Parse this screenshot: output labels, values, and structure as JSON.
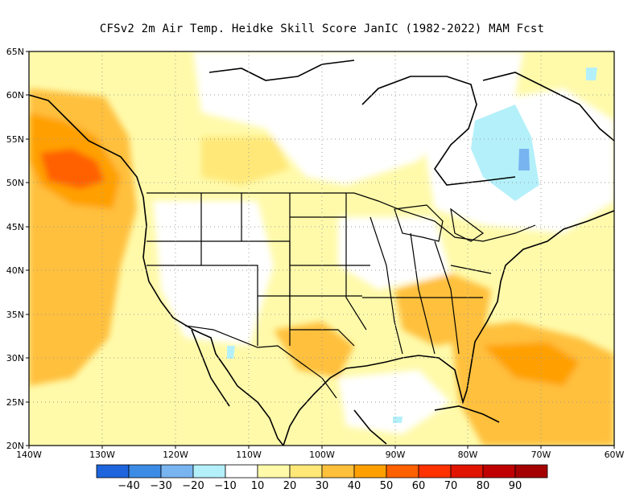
{
  "title": "CFSv2  2m Air Temp. Heidke Skill Score JanIC (1982-2022) MAM Fcst",
  "map": {
    "lon_labels": [
      "140W",
      "130W",
      "120W",
      "110W",
      "100W",
      "90W",
      "80W",
      "70W",
      "60W"
    ],
    "lat_labels": [
      "65N",
      "60N",
      "55N",
      "50N",
      "45N",
      "40N",
      "35N",
      "30N",
      "25N",
      "20N"
    ],
    "lon_range": [
      -140,
      -60
    ],
    "lat_range": [
      20,
      65
    ],
    "grid": true
  },
  "colorbar": {
    "colors": [
      "#1e64dc",
      "#3c8ce6",
      "#78b4f0",
      "#b4f0fa",
      "#ffffff",
      "#fffaaa",
      "#ffe878",
      "#ffc03c",
      "#ffa000",
      "#ff6000",
      "#ff3200",
      "#e11400",
      "#c00000",
      "#a50000"
    ],
    "labels": [
      "−40",
      "−30",
      "−20",
      "−10",
      "10",
      "20",
      "30",
      "40",
      "50",
      "60",
      "70",
      "80",
      "90"
    ]
  }
}
